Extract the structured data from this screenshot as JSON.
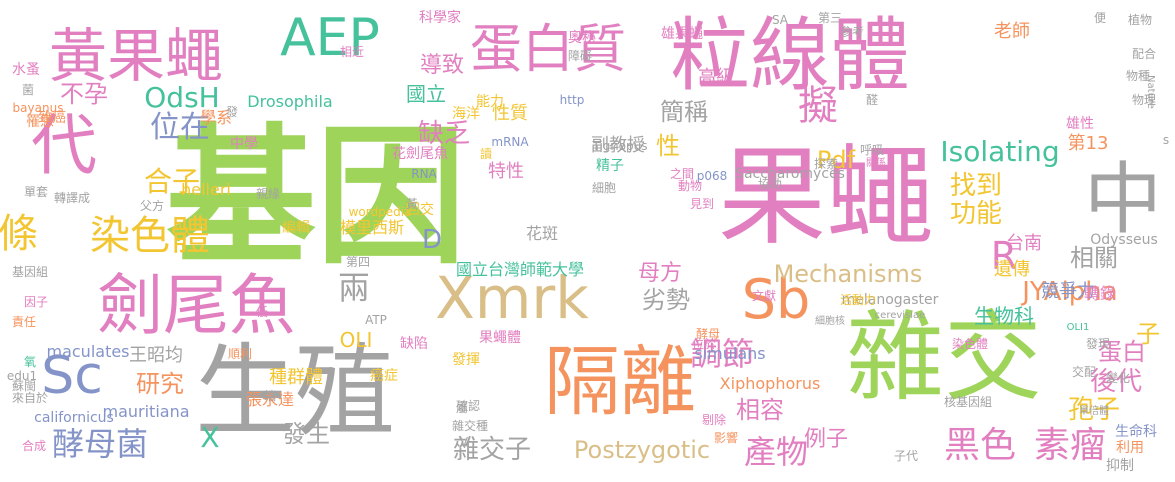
{
  "palette": {
    "green": "#9fd45a",
    "pink": "#e27fc0",
    "gray": "#a3a3a3",
    "teal": "#45c19b",
    "yellow": "#f2c531",
    "blue": "#8494c8",
    "orange": "#f5935e",
    "tan": "#d9bf87"
  },
  "words": [
    {
      "text": "基因"
    },
    {
      "text": "粒線體"
    },
    {
      "text": "果蠅"
    },
    {
      "text": "雜交"
    },
    {
      "text": "生殖"
    },
    {
      "text": "隔離"
    },
    {
      "text": "劍尾魚"
    },
    {
      "text": "中"
    },
    {
      "text": "黃果蠅"
    },
    {
      "text": "代"
    },
    {
      "text": "蛋白質"
    },
    {
      "text": "Xmrk"
    },
    {
      "text": "AEP"
    },
    {
      "text": "Sc"
    },
    {
      "text": "條"
    },
    {
      "text": "染色體"
    },
    {
      "text": "Sb"
    },
    {
      "text": "黑色"
    },
    {
      "text": "素瘤"
    },
    {
      "text": "酵母菌"
    },
    {
      "text": "擬"
    },
    {
      "text": "OdsH"
    },
    {
      "text": "位在"
    },
    {
      "text": "Isolating"
    },
    {
      "text": "Mechanisms"
    },
    {
      "text": "Postzygotic"
    },
    {
      "text": "JYAlpha"
    },
    {
      "text": "產物"
    },
    {
      "text": "調節"
    },
    {
      "text": "導致"
    },
    {
      "text": "合子"
    },
    {
      "text": "缺乏"
    },
    {
      "text": "不孕"
    },
    {
      "text": "兩"
    },
    {
      "text": "R"
    },
    {
      "text": "Pdf"
    },
    {
      "text": "簡稱"
    },
    {
      "text": "功能"
    },
    {
      "text": "找到"
    },
    {
      "text": "性"
    },
    {
      "text": "相關"
    },
    {
      "text": "劣勢"
    },
    {
      "text": "母方"
    },
    {
      "text": "後代"
    },
    {
      "text": "孢子"
    },
    {
      "text": "蛋白"
    },
    {
      "text": "例子"
    },
    {
      "text": "雜交子"
    },
    {
      "text": "研究"
    },
    {
      "text": "發生"
    },
    {
      "text": "X"
    },
    {
      "text": "D"
    },
    {
      "text": "OLI"
    },
    {
      "text": "相容"
    },
    {
      "text": "生物科"
    },
    {
      "text": "高級"
    },
    {
      "text": "第13"
    },
    {
      "text": "Nature"
    },
    {
      "text": "特性"
    },
    {
      "text": "性質"
    },
    {
      "text": "副教授"
    },
    {
      "text": "國立"
    },
    {
      "text": "老師"
    },
    {
      "text": "遺傳"
    },
    {
      "text": "台南"
    },
    {
      "text": "競爭力"
    },
    {
      "text": "子"
    },
    {
      "text": "轉錄"
    },
    {
      "text": "花斑"
    },
    {
      "text": "精子"
    },
    {
      "text": "模里西斯"
    },
    {
      "text": "國立台灣師範大學"
    },
    {
      "text": "種群體"
    },
    {
      "text": "張永達"
    },
    {
      "text": "王昭均"
    },
    {
      "text": "maculates"
    },
    {
      "text": "mauritiana"
    },
    {
      "text": "californicus"
    },
    {
      "text": "Xiphophorus"
    },
    {
      "text": "simulans"
    },
    {
      "text": "melanogaster"
    },
    {
      "text": "Odysseus"
    },
    {
      "text": "Drosophila"
    },
    {
      "text": "helleri"
    },
    {
      "text": "Tigriopus"
    },
    {
      "text": "Saccharomyces"
    },
    {
      "text": "wordpedia"
    },
    {
      "text": "cerevisiae"
    },
    {
      "text": "學系"
    },
    {
      "text": "中學"
    },
    {
      "text": "花劍尾魚"
    },
    {
      "text": "科學家"
    },
    {
      "text": "海洋"
    },
    {
      "text": "能力"
    },
    {
      "text": "致癌"
    },
    {
      "text": "水蚤"
    },
    {
      "text": "bayanus"
    },
    {
      "text": "罹患"
    },
    {
      "text": "雄性"
    },
    {
      "text": "雄果蠅"
    },
    {
      "text": "奧秘"
    },
    {
      "text": "物種"
    },
    {
      "text": "植物"
    },
    {
      "text": "配合"
    },
    {
      "text": "第三"
    },
    {
      "text": "參考"
    },
    {
      "text": "果蠅體"
    },
    {
      "text": "缺陷"
    },
    {
      "text": "癌症"
    },
    {
      "text": "基因組"
    },
    {
      "text": "因子"
    },
    {
      "text": "責任"
    },
    {
      "text": "回交"
    },
    {
      "text": "編輯"
    },
    {
      "text": "轉譯成"
    },
    {
      "text": "父方"
    },
    {
      "text": "單套"
    },
    {
      "text": "RNA"
    },
    {
      "text": "mRNA"
    },
    {
      "text": "http"
    },
    {
      "text": "p068"
    },
    {
      "text": "細胞"
    },
    {
      "text": "動物"
    },
    {
      "text": "之間"
    },
    {
      "text": "呼吸"
    },
    {
      "text": "關係"
    },
    {
      "text": "探索"
    },
    {
      "text": "細胞核"
    },
    {
      "text": "活動力"
    },
    {
      "text": "第四"
    },
    {
      "text": "OLI1"
    },
    {
      "text": "發現"
    },
    {
      "text": "變化"
    },
    {
      "text": "染色體"
    },
    {
      "text": "核基因組"
    },
    {
      "text": "生命科"
    },
    {
      "text": "利用"
    },
    {
      "text": "抑制"
    },
    {
      "text": "子代"
    },
    {
      "text": "影響"
    },
    {
      "text": "剔除"
    },
    {
      "text": "雜交種"
    },
    {
      "text": "確認"
    },
    {
      "text": "屬"
    },
    {
      "text": "一端"
    },
    {
      "text": "來自於"
    },
    {
      "text": "合成"
    },
    {
      "text": "edu1"
    },
    {
      "text": "ATP"
    },
    {
      "text": "發揮"
    },
    {
      "text": "位於"
    },
    {
      "text": "酵母"
    },
    {
      "text": "順利"
    },
    {
      "text": "低"
    },
    {
      "text": "親緣"
    },
    {
      "text": "氧"
    },
    {
      "text": "蘇閩"
    },
    {
      "text": "交配"
    },
    {
      "text": "單倍體"
    },
    {
      "text": "協助"
    },
    {
      "text": "見到"
    },
    {
      "text": "相近"
    },
    {
      "text": "障礙"
    },
    {
      "text": "文獻"
    },
    {
      "text": "SA"
    },
    {
      "text": "便"
    },
    {
      "text": "物理"
    },
    {
      "text": "黃"
    },
    {
      "text": "發"
    },
    {
      "text": "讀"
    },
    {
      "text": "醛"
    },
    {
      "text": "菌"
    },
    {
      "text": "V"
    },
    {
      "text": "s"
    }
  ]
}
